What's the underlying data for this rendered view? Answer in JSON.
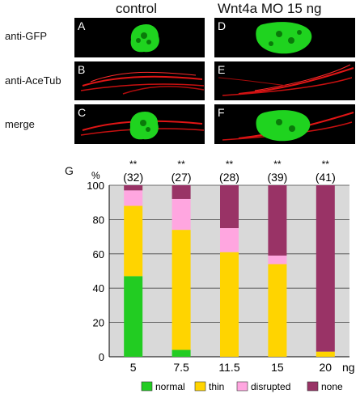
{
  "columns": [
    "control",
    "Wnt4a MO 15 ng"
  ],
  "rows": [
    "anti-GFP",
    "anti-AceTub",
    "merge"
  ],
  "panels": [
    {
      "letter": "A",
      "content": "gfp",
      "col": 0,
      "row": 0
    },
    {
      "letter": "B",
      "content": "tub",
      "col": 0,
      "row": 1
    },
    {
      "letter": "C",
      "content": "merge",
      "col": 0,
      "row": 2
    },
    {
      "letter": "D",
      "content": "gfp",
      "col": 1,
      "row": 0
    },
    {
      "letter": "E",
      "content": "tub",
      "col": 1,
      "row": 1
    },
    {
      "letter": "F",
      "content": "merge",
      "col": 1,
      "row": 2
    }
  ],
  "colors": {
    "gfp": "#22dd22",
    "tubulin": "#ff1a1a",
    "panel_bg": "#000000",
    "plot_bg": "#d9d9d9"
  },
  "figure_letter": "G",
  "chart_data": {
    "type": "bar",
    "stacked": true,
    "categories": [
      "5",
      "7.5",
      "11.5",
      "15",
      "20"
    ],
    "x_unit": "ng",
    "y_unit": "%",
    "ylim": [
      0,
      100
    ],
    "yticks": [
      0,
      20,
      40,
      60,
      80,
      100
    ],
    "grid": true,
    "significance": [
      "**",
      "**",
      "**",
      "**",
      "**"
    ],
    "n_labels": [
      "(32)",
      "(27)",
      "(28)",
      "(39)",
      "(41)"
    ],
    "series": [
      {
        "name": "normal",
        "color": "#22cc22",
        "values": [
          47,
          4,
          0,
          0,
          0
        ]
      },
      {
        "name": "thin",
        "color": "#ffd400",
        "values": [
          41,
          70,
          61,
          54,
          3
        ]
      },
      {
        "name": "disrupted",
        "color": "#ffa6e0",
        "values": [
          9,
          18,
          14,
          5,
          0
        ]
      },
      {
        "name": "none",
        "color": "#993366",
        "values": [
          3,
          8,
          25,
          41,
          97
        ]
      }
    ],
    "legend_position": "bottom"
  }
}
